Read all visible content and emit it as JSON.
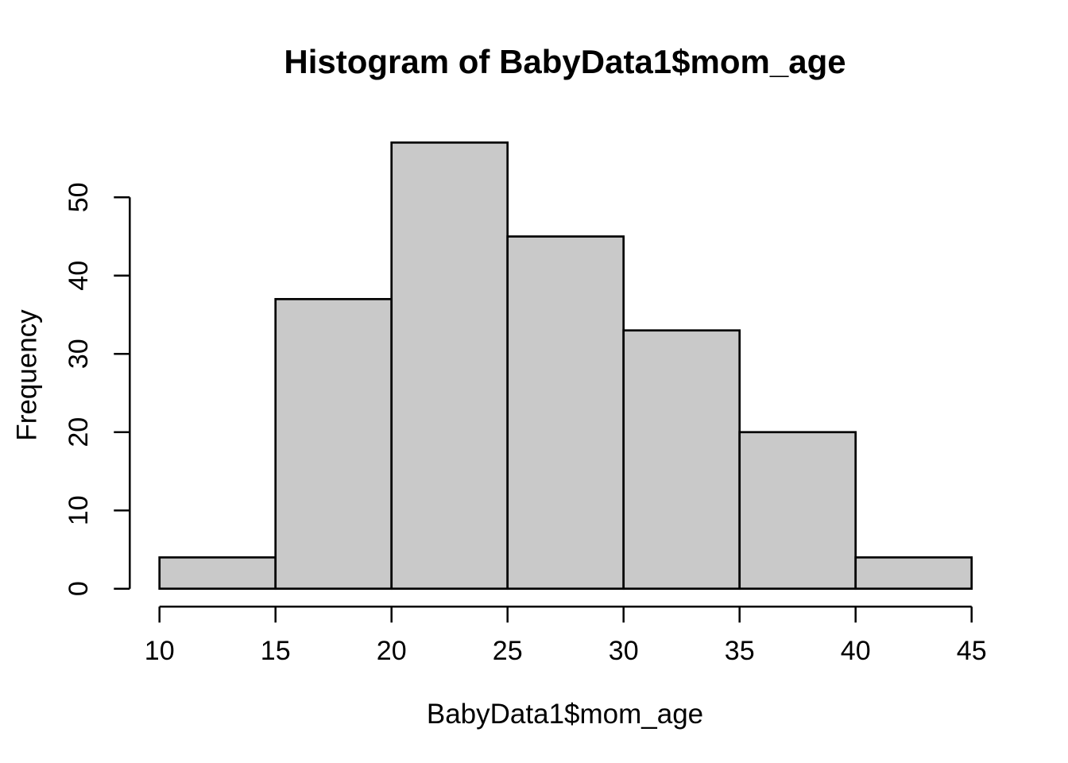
{
  "chart_data": {
    "type": "bar",
    "subtype": "histogram",
    "title": "Histogram of BabyData1$mom_age",
    "xlabel": "BabyData1$mom_age",
    "ylabel": "Frequency",
    "bin_breaks": [
      10,
      15,
      20,
      25,
      30,
      35,
      40,
      45
    ],
    "bin_labels": [
      "10-15",
      "15-20",
      "20-25",
      "25-30",
      "30-35",
      "35-40",
      "40-45"
    ],
    "values": [
      4,
      37,
      57,
      45,
      33,
      20,
      4
    ],
    "x_ticks": [
      10,
      15,
      20,
      25,
      30,
      35,
      40,
      45
    ],
    "y_ticks": [
      0,
      10,
      20,
      30,
      40,
      50
    ],
    "xlim": [
      10,
      45
    ],
    "ylim": [
      0,
      57
    ],
    "grid": false,
    "legend": "none",
    "colors": {
      "bar_fill": "#C9C9C9",
      "bar_border": "#000000",
      "axis": "#000000",
      "text": "#000000",
      "background": "#FFFFFF"
    }
  }
}
